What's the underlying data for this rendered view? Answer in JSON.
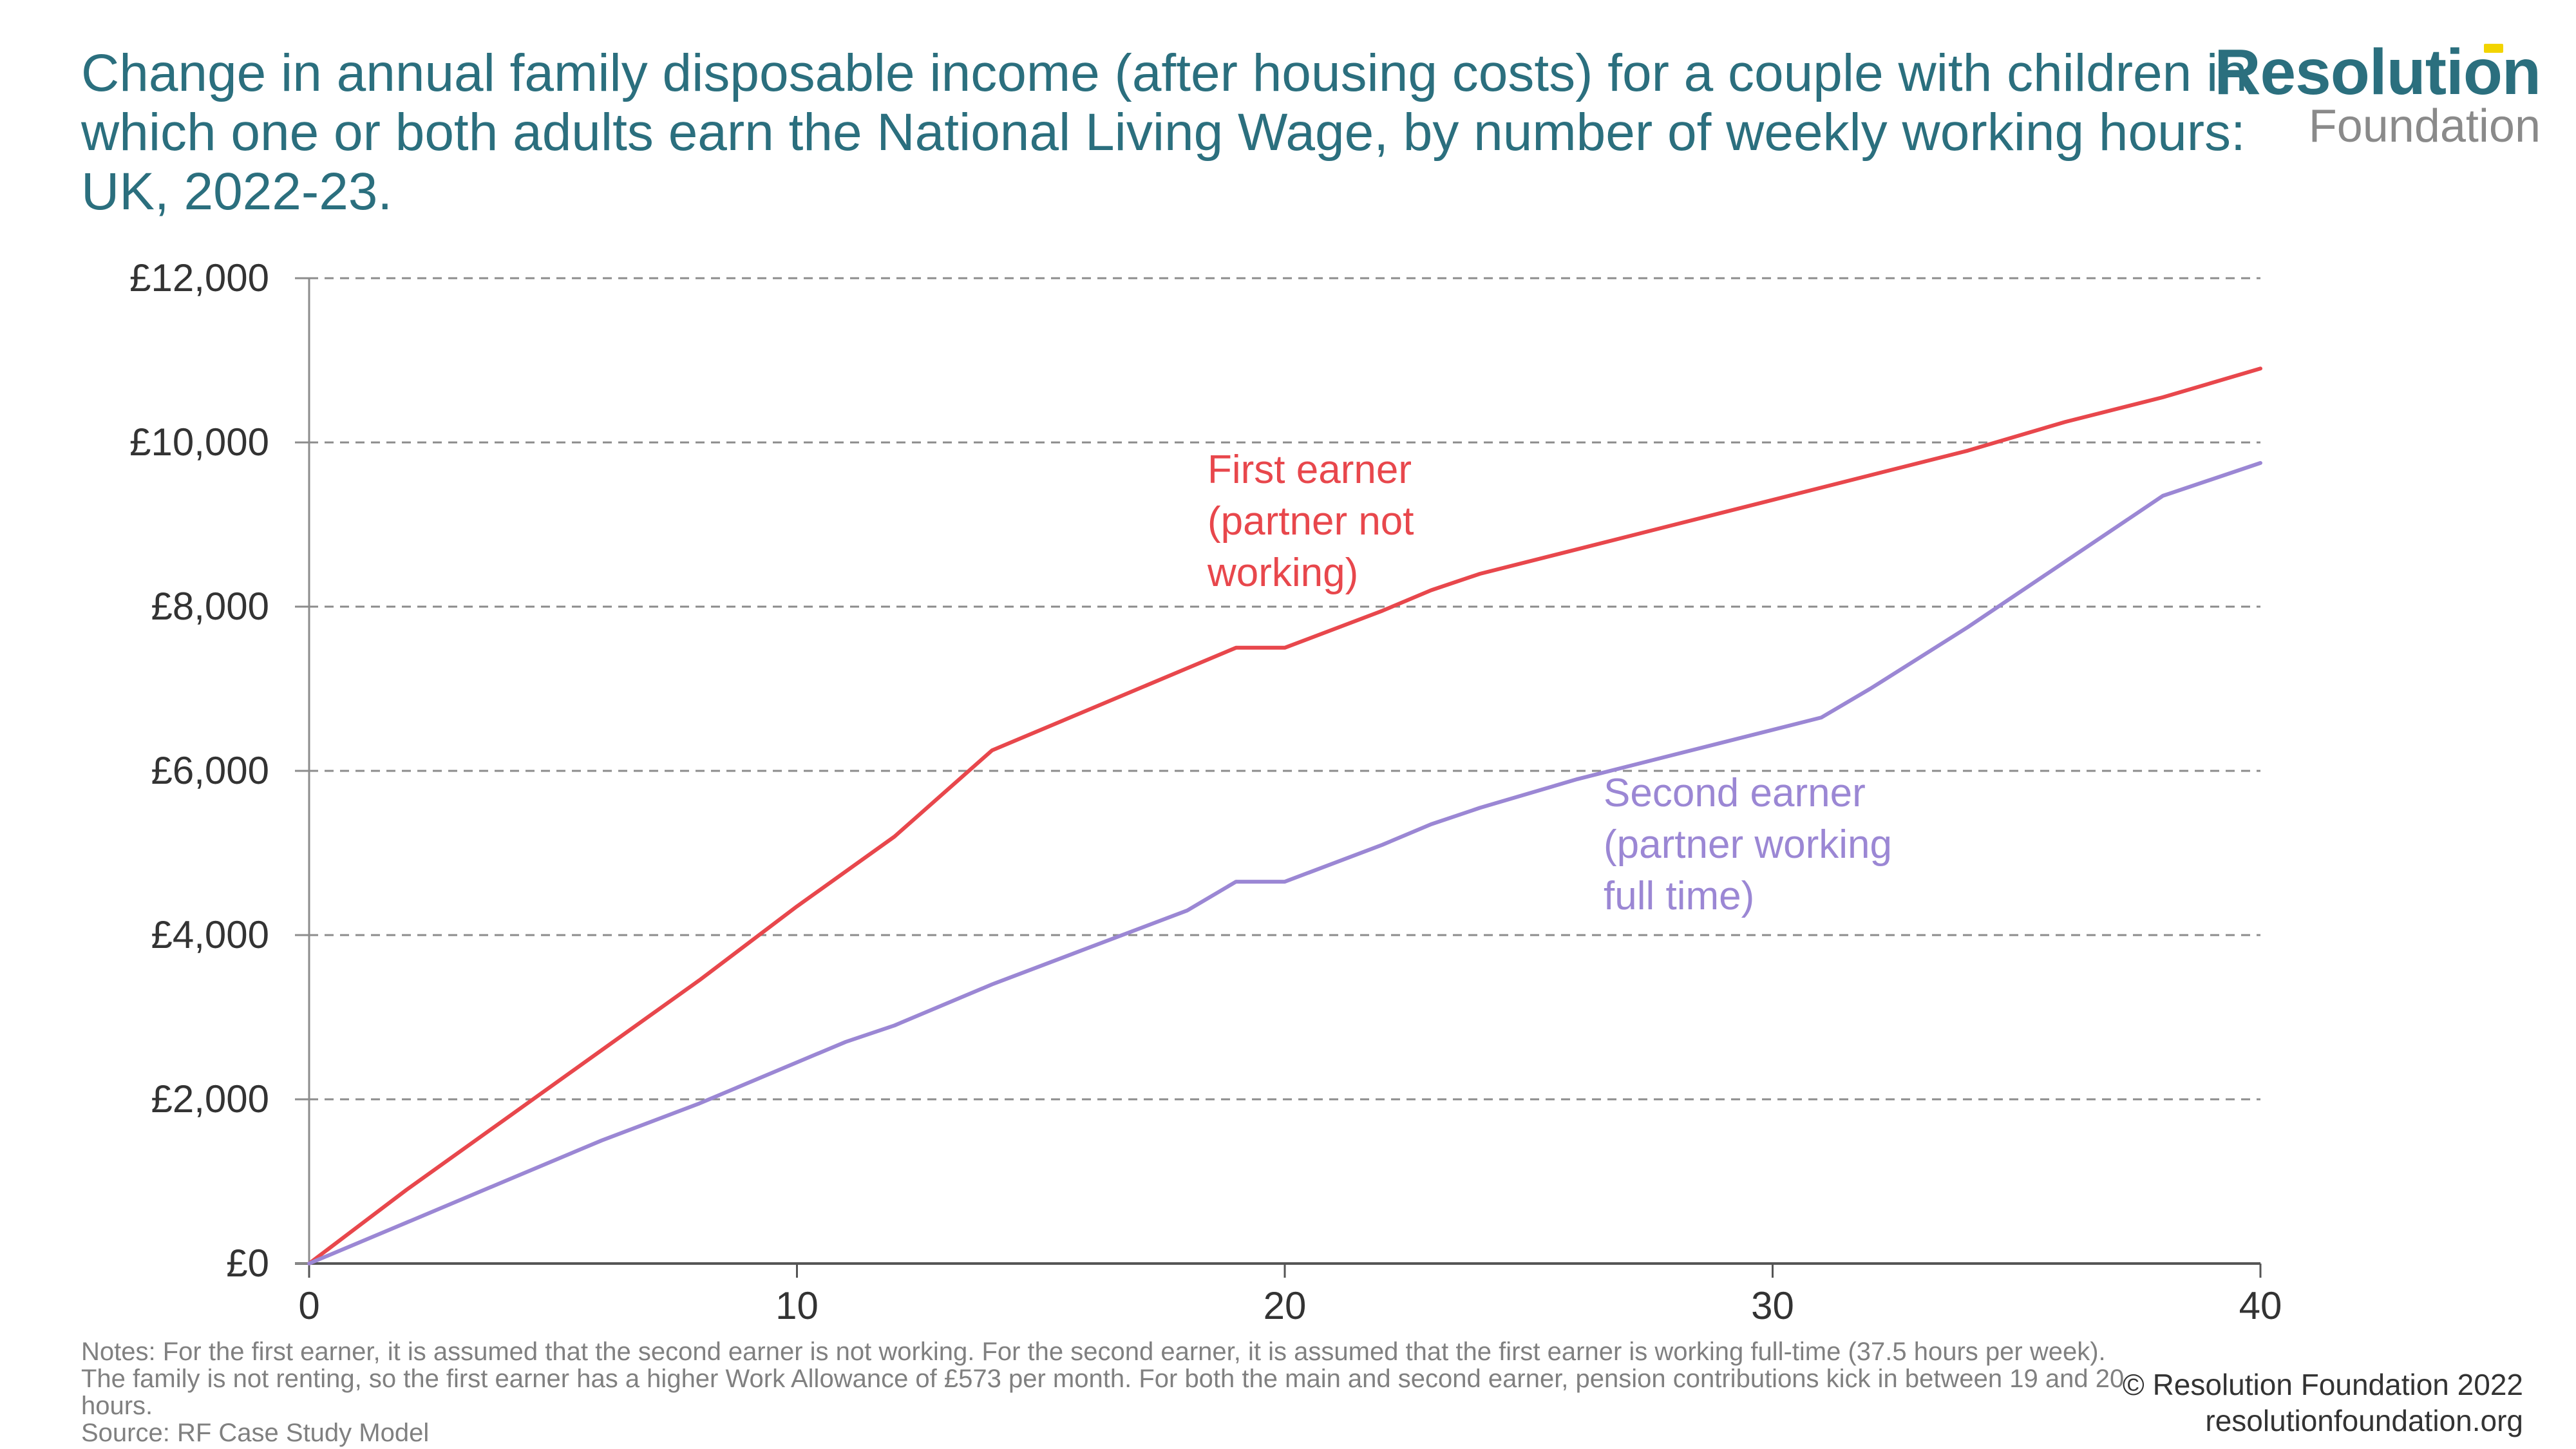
{
  "title": "Change in annual family disposable income (after housing costs) for a couple with children in which one or both adults earn the National Living Wage, by number of weekly working hours: UK, 2022-23.",
  "logo": {
    "top": "Resolution",
    "bottom": "Foundation"
  },
  "notes": "Notes: For the first earner, it is assumed that the second earner is not working. For the second earner, it is assumed that the first earner is working full-time (37.5 hours per week). The family is not renting, so the first earner has a higher Work Allowance of £573 per month. For both the main and second earner, pension contributions kick in between 19 and 20 hours.",
  "source": "Source: RF Case Study Model",
  "copyright": "© Resolution Foundation 2022",
  "website": "resolutionfoundation.org",
  "colors": {
    "first_earner": "#e8474c",
    "second_earner": "#9b87d4",
    "title": "#2b6f7e"
  },
  "chart_data": {
    "type": "line",
    "title": "Change in annual family disposable income (after housing costs) for a couple with children in which one or both adults earn the National Living Wage, by number of weekly working hours: UK, 2022-23.",
    "xlabel": "",
    "ylabel": "",
    "xlim": [
      0,
      40
    ],
    "ylim": [
      0,
      12000
    ],
    "x_ticks": [
      0,
      10,
      20,
      30,
      40
    ],
    "x_tick_labels": [
      "0",
      "10",
      "20",
      "30",
      "40"
    ],
    "y_ticks": [
      0,
      2000,
      4000,
      6000,
      8000,
      10000,
      12000
    ],
    "y_tick_labels": [
      "£0",
      "£2,000",
      "£4,000",
      "£6,000",
      "£8,000",
      "£10,000",
      "£12,000"
    ],
    "grid": "horizontal dashed",
    "series": [
      {
        "name": "First earner (partner not working)",
        "label_lines": [
          "First earner",
          "(partner not",
          "working)"
        ],
        "color": "#e8474c",
        "x": [
          0,
          2,
          4,
          6,
          8,
          10,
          12,
          14,
          16,
          18,
          19,
          20,
          22,
          23,
          24,
          26,
          28,
          30,
          32,
          34,
          36,
          38,
          40
        ],
        "y": [
          0,
          900,
          1750,
          2600,
          3450,
          4350,
          5200,
          6250,
          6750,
          7250,
          7500,
          7500,
          7950,
          8200,
          8400,
          8700,
          9000,
          9300,
          9600,
          9900,
          10250,
          10550,
          10900
        ]
      },
      {
        "name": "Second earner (partner working full time)",
        "label_lines": [
          "Second earner",
          "(partner working",
          "full time)"
        ],
        "color": "#9b87d4",
        "x": [
          0,
          2,
          4,
          6,
          8,
          10,
          11,
          12,
          14,
          16,
          18,
          19,
          20,
          22,
          23,
          24,
          26,
          28,
          30,
          31,
          32,
          34,
          36,
          38,
          40
        ],
        "y": [
          0,
          500,
          1000,
          1500,
          1950,
          2450,
          2700,
          2900,
          3400,
          3850,
          4300,
          4650,
          4650,
          5100,
          5350,
          5550,
          5900,
          6200,
          6500,
          6650,
          7000,
          7750,
          8550,
          9350,
          9750
        ]
      }
    ]
  }
}
